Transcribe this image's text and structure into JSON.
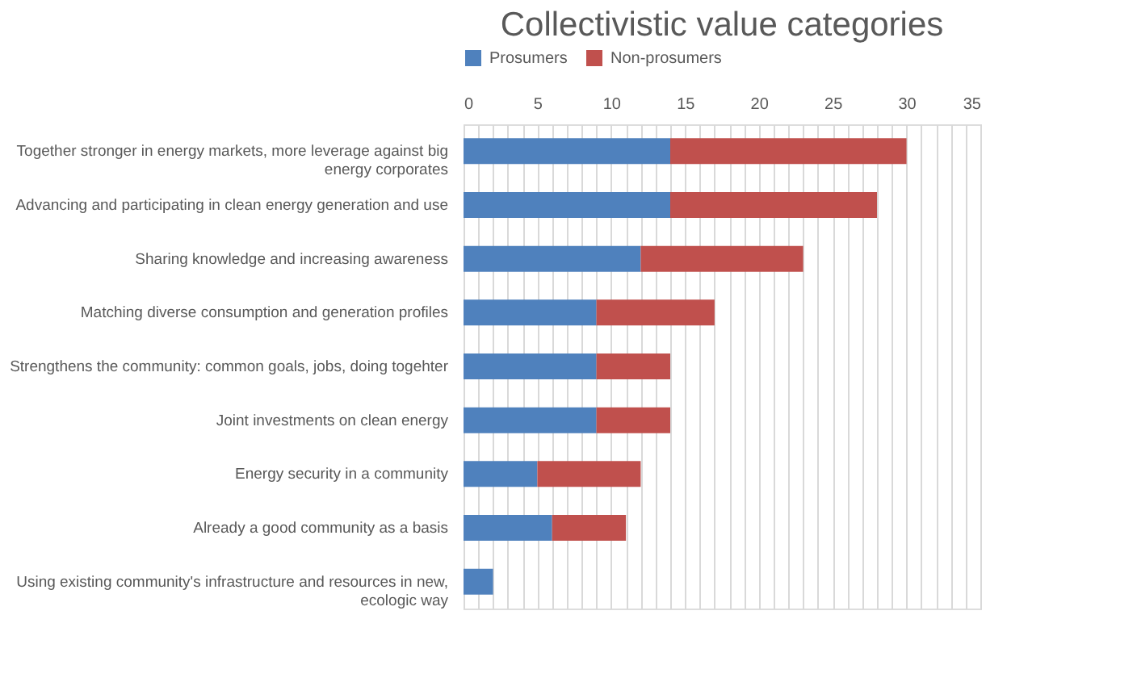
{
  "chart_data": {
    "type": "bar",
    "orientation": "horizontal",
    "stacked": true,
    "title": "Collectivistic value categories",
    "categories": [
      "Together stronger in energy markets, more leverage against big energy corporates",
      "Advancing and participating in clean energy generation and use",
      "Sharing knowledge and increasing awareness",
      "Matching diverse consumption and generation profiles",
      "Strengthens the community: common goals, jobs, doing togehter",
      "Joint investments on clean energy",
      "Energy security in a community",
      "Already a good community as a basis",
      "Using existing community's infrastructure and resources in new, ecologic way"
    ],
    "series": [
      {
        "name": "Prosumers",
        "color": "#4f81bd",
        "values": [
          14,
          14,
          12,
          9,
          9,
          9,
          5,
          6,
          2
        ]
      },
      {
        "name": "Non-prosumers",
        "color": "#c0504d",
        "values": [
          16,
          14,
          11,
          8,
          5,
          5,
          7,
          5,
          0
        ]
      }
    ],
    "xlim": [
      0,
      35
    ],
    "xticks": [
      0,
      {
        "value": 1,
        "label": null
      },
      {
        "value": 2,
        "label": null
      },
      {
        "value": 3,
        "label": null
      },
      {
        "value": 4,
        "label": null
      },
      5,
      {
        "value": 6,
        "label": null
      },
      {
        "value": 7,
        "label": null
      },
      {
        "value": 8,
        "label": null
      },
      {
        "value": 9,
        "label": null
      },
      10,
      {
        "value": 11,
        "label": null
      },
      {
        "value": 12,
        "label": null
      },
      {
        "value": 13,
        "label": null
      },
      {
        "value": 14,
        "label": null
      },
      15,
      {
        "value": 16,
        "label": null
      },
      {
        "value": 17,
        "label": null
      },
      {
        "value": 18,
        "label": null
      },
      {
        "value": 19,
        "label": null
      },
      20,
      {
        "value": 21,
        "label": null
      },
      {
        "value": 22,
        "label": null
      },
      {
        "value": 23,
        "label": null
      },
      {
        "value": 24,
        "label": null
      },
      25,
      {
        "value": 26,
        "label": null
      },
      {
        "value": 27,
        "label": null
      },
      {
        "value": 28,
        "label": null
      },
      {
        "value": 29,
        "label": null
      },
      30,
      {
        "value": 31,
        "label": null
      },
      {
        "value": 32,
        "label": null
      },
      {
        "value": 33,
        "label": null
      },
      {
        "value": 34,
        "label": null
      },
      35
    ],
    "grid": "x",
    "legend": "top"
  }
}
